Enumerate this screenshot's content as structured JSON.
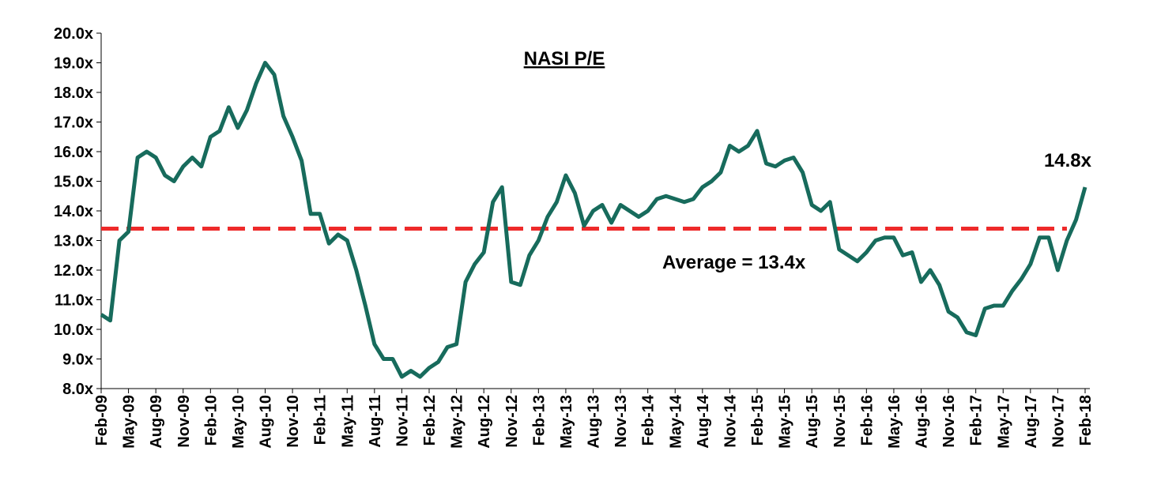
{
  "chart_data": {
    "type": "line",
    "title": "NASI P/E",
    "categories": [
      "Feb-09",
      null,
      null,
      "May-09",
      null,
      null,
      "Aug-09",
      null,
      null,
      "Nov-09",
      null,
      null,
      "Feb-10",
      null,
      null,
      "May-10",
      null,
      null,
      "Aug-10",
      null,
      null,
      "Nov-10",
      null,
      null,
      "Feb-11",
      null,
      null,
      "May-11",
      null,
      null,
      "Aug-11",
      null,
      null,
      "Nov-11",
      null,
      null,
      "Feb-12",
      null,
      null,
      "May-12",
      null,
      null,
      "Aug-12",
      null,
      null,
      "Nov-12",
      null,
      null,
      "Feb-13",
      null,
      null,
      "May-13",
      null,
      null,
      "Aug-13",
      null,
      null,
      "Nov-13",
      null,
      null,
      "Feb-14",
      null,
      null,
      "May-14",
      null,
      null,
      "Aug-14",
      null,
      null,
      "Nov-14",
      null,
      null,
      "Feb-15",
      null,
      null,
      "May-15",
      null,
      null,
      "Aug-15",
      null,
      null,
      "Nov-15",
      null,
      null,
      "Feb-16",
      null,
      null,
      "May-16",
      null,
      null,
      "Aug-16",
      null,
      null,
      "Nov-16",
      null,
      null,
      "Feb-17",
      null,
      null,
      "May-17",
      null,
      null,
      "Aug-17",
      null,
      null,
      "Nov-17",
      null,
      null,
      "Feb-18"
    ],
    "series": [
      {
        "color": "#176b5c",
        "values": [
          10.5,
          10.3,
          13.0,
          13.3,
          15.8,
          16.0,
          15.8,
          15.2,
          15.0,
          15.5,
          15.8,
          15.5,
          16.5,
          16.7,
          17.5,
          16.8,
          17.4,
          18.3,
          19.0,
          18.6,
          17.2,
          16.5,
          15.7,
          13.9,
          13.9,
          12.9,
          13.2,
          13.0,
          12.0,
          10.8,
          9.5,
          9.0,
          9.0,
          8.4,
          8.6,
          8.4,
          8.7,
          8.9,
          9.4,
          9.5,
          11.6,
          12.2,
          12.6,
          14.3,
          14.8,
          11.6,
          11.5,
          12.5,
          13.0,
          13.8,
          14.3,
          15.2,
          14.6,
          13.5,
          14.0,
          14.2,
          13.6,
          14.2,
          14.0,
          13.8,
          14.0,
          14.4,
          14.5,
          14.4,
          14.3,
          14.4,
          14.8,
          15.0,
          15.3,
          16.2,
          16.0,
          16.2,
          16.7,
          15.6,
          15.5,
          15.7,
          15.8,
          15.3,
          14.2,
          14.0,
          14.3,
          12.7,
          12.5,
          12.3,
          12.6,
          13.0,
          13.1,
          13.1,
          12.5,
          12.6,
          11.6,
          12.0,
          11.5,
          10.6,
          10.4,
          9.9,
          9.8,
          10.7,
          10.8,
          10.8,
          11.3,
          11.7,
          12.2,
          13.1,
          13.1,
          12.0,
          13.0,
          13.7,
          14.8
        ]
      }
    ],
    "end_label": "14.8x",
    "average": {
      "value": 13.4,
      "label": "Average = 13.4x",
      "color": "#ee2a2a"
    },
    "ylim": [
      8,
      20
    ],
    "yticks": [
      {
        "value": 8,
        "label": "8.0x"
      },
      {
        "value": 9,
        "label": "9.0x"
      },
      {
        "value": 10,
        "label": "10.0x"
      },
      {
        "value": 11,
        "label": "11.0x"
      },
      {
        "value": 12,
        "label": "12.0x"
      },
      {
        "value": 13,
        "label": "13.0x"
      },
      {
        "value": 14,
        "label": "14.0x"
      },
      {
        "value": 15,
        "label": "15.0x"
      },
      {
        "value": 16,
        "label": "16.0x"
      },
      {
        "value": 17,
        "label": "17.0x"
      },
      {
        "value": 18,
        "label": "18.0x"
      },
      {
        "value": 19,
        "label": "19.0x"
      },
      {
        "value": 20,
        "label": "20.0x"
      }
    ],
    "grid": false
  }
}
